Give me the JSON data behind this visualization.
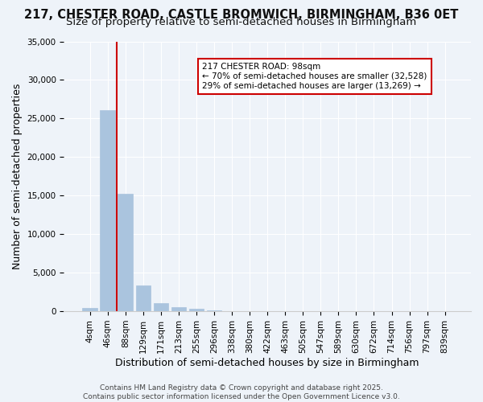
{
  "title_line1": "217, CHESTER ROAD, CASTLE BROMWICH, BIRMINGHAM, B36 0ET",
  "title_line2": "Size of property relative to semi-detached houses in Birmingham",
  "xlabel": "Distribution of semi-detached houses by size in Birmingham",
  "ylabel": "Number of semi-detached properties",
  "footer": "Contains HM Land Registry data © Crown copyright and database right 2025.\nContains public sector information licensed under the Open Government Licence v3.0.",
  "bin_labels": [
    "4sqm",
    "46sqm",
    "88sqm",
    "129sqm",
    "171sqm",
    "213sqm",
    "255sqm",
    "296sqm",
    "338sqm",
    "380sqm",
    "422sqm",
    "463sqm",
    "505sqm",
    "547sqm",
    "589sqm",
    "630sqm",
    "672sqm",
    "714sqm",
    "756sqm",
    "797sqm",
    "839sqm"
  ],
  "bar_values": [
    400,
    26100,
    15200,
    3350,
    1100,
    550,
    350,
    100,
    0,
    0,
    0,
    0,
    0,
    0,
    0,
    0,
    0,
    0,
    0,
    0,
    0
  ],
  "bar_color": "#aac4de",
  "bar_edge_color": "#aac4de",
  "background_color": "#eef3f9",
  "grid_color": "#ffffff",
  "vline_x": 1.5,
  "annotation_title": "217 CHESTER ROAD: 98sqm",
  "annotation_line2": "← 70% of semi-detached houses are smaller (32,528)",
  "annotation_line3": "29% of semi-detached houses are larger (13,269) →",
  "annotation_box_color": "#ffffff",
  "annotation_box_edge": "#cc0000",
  "vline_color": "#cc0000",
  "ylim": [
    0,
    35000
  ],
  "yticks": [
    0,
    5000,
    10000,
    15000,
    20000,
    25000,
    30000,
    35000
  ],
  "title_fontsize": 10.5,
  "subtitle_fontsize": 9.5,
  "axis_label_fontsize": 9,
  "tick_fontsize": 7.5,
  "footer_fontsize": 6.5
}
